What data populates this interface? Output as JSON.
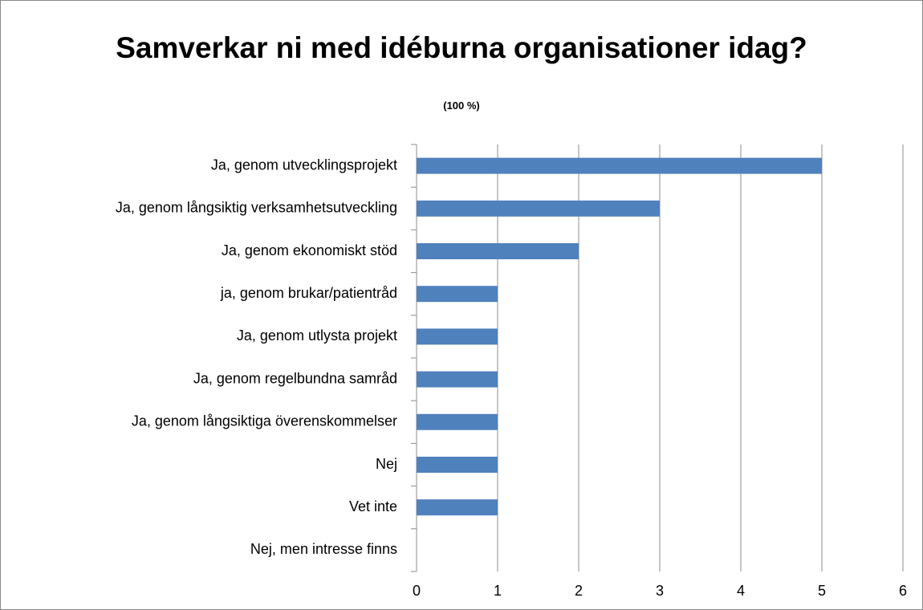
{
  "chart_data": {
    "type": "bar",
    "orientation": "horizontal",
    "title": "Samverkar ni med idéburna organisationer idag?",
    "subtitle": "(100 %)",
    "categories": [
      "Ja, genom utvecklingsprojekt",
      "Ja, genom långsiktig verksamhetsutveckling",
      "Ja, genom ekonomiskt stöd",
      "ja, genom brukar/patientråd",
      "Ja, genom utlysta projekt",
      "Ja, genom regelbundna samråd",
      "Ja, genom långsiktiga överenskommelser",
      "Nej",
      "Vet inte",
      "Nej, men intresse finns"
    ],
    "values": [
      5,
      3,
      2,
      1,
      1,
      1,
      1,
      1,
      1,
      0
    ],
    "color": "#4f81bd",
    "xlim": [
      0,
      6
    ],
    "xticks": [
      0,
      1,
      2,
      3,
      4,
      5,
      6
    ],
    "grid": true
  }
}
